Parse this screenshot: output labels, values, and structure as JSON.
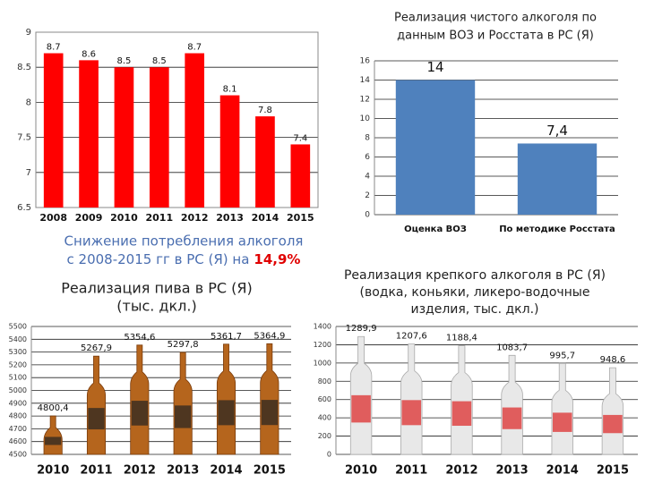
{
  "chart_data": [
    {
      "type": "bar",
      "categories": [
        "2008",
        "2009",
        "2010",
        "2011",
        "2012",
        "2013",
        "2014",
        "2015"
      ],
      "values": [
        8.7,
        8.6,
        8.5,
        8.5,
        8.7,
        8.1,
        7.8,
        7.4
      ],
      "color": "#ff0000",
      "ylim": [
        6.5,
        9
      ],
      "yticks": [
        6.5,
        7,
        7.5,
        8,
        8.5,
        9
      ],
      "grid": true,
      "annotation": [
        "Снижение потребления алкоголя",
        "с 2008-2015 гг в РС (Я) на",
        "14,9%"
      ]
    },
    {
      "type": "bar",
      "title": [
        "Реализация чистого алкоголя по",
        "данным ВОЗ и Росстата в РС (Я)"
      ],
      "categories": [
        "Оценка ВОЗ",
        "По методике Росстата"
      ],
      "values": [
        14,
        7.4
      ],
      "value_labels": [
        "14",
        "7,4"
      ],
      "color": "#4f81bd",
      "ylim": [
        0,
        16
      ],
      "yticks": [
        0,
        2,
        4,
        6,
        8,
        10,
        12,
        14,
        16
      ],
      "grid": true
    },
    {
      "type": "bar",
      "title": [
        "Реализация пива в РС (Я)",
        "(тыс. дкл.)"
      ],
      "categories": [
        "2010",
        "2011",
        "2012",
        "2013",
        "2014",
        "2015"
      ],
      "values": [
        4800.4,
        5267.9,
        5354.6,
        5297.8,
        5361.7,
        5364.9
      ],
      "value_labels": [
        "4800,4",
        "5267,9",
        "5354,6",
        "5297,8",
        "5361,7",
        "5364,9"
      ],
      "color": "#b5651d",
      "ylim": [
        4500,
        5500
      ],
      "yticks": [
        4500,
        4600,
        4700,
        4800,
        4900,
        5000,
        5100,
        5200,
        5300,
        5400,
        5500
      ],
      "grid": true
    },
    {
      "type": "bar",
      "title": [
        "Реализация крепкого алкоголя  в РС (Я)",
        "(водка, коньяки, ликеро-водочные",
        "изделия, тыс. дкл.)"
      ],
      "categories": [
        "2010",
        "2011",
        "2012",
        "2013",
        "2014",
        "2015"
      ],
      "values": [
        1289.9,
        1207.6,
        1188.4,
        1083.7,
        995.7,
        948.6
      ],
      "value_labels": [
        "1289,9",
        "1207,6",
        "1188,4",
        "1083,7",
        "995,7",
        "948,6"
      ],
      "color": "#e8e8e8",
      "ylim": [
        0,
        1400
      ],
      "yticks": [
        0,
        200,
        400,
        600,
        800,
        1000,
        1200,
        1400
      ],
      "grid": true
    }
  ]
}
